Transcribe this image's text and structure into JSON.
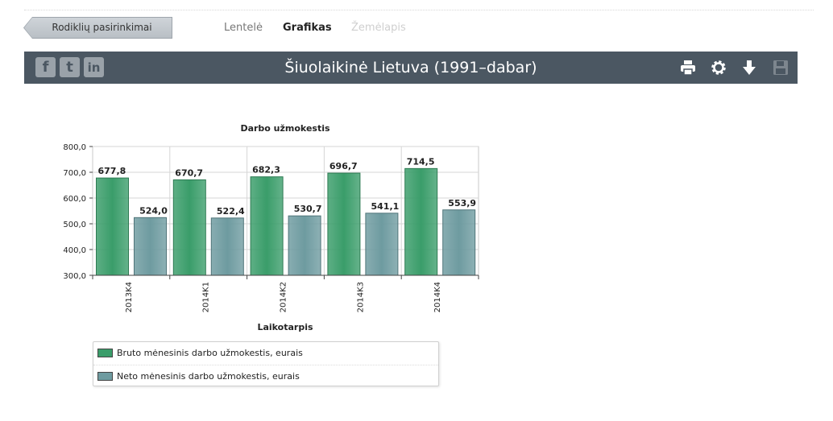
{
  "nav": {
    "back_label": "Rodiklių pasirinkimai",
    "tabs": [
      {
        "label": "Lentelė",
        "state": "inactive"
      },
      {
        "label": "Grafikas",
        "state": "active"
      },
      {
        "label": "Žemėlapis",
        "state": "disabled"
      }
    ]
  },
  "titlebar": {
    "title": "Šiuolaikinė Lietuva (1991–dabar)",
    "social": [
      {
        "icon": "facebook-icon",
        "glyph": "f"
      },
      {
        "icon": "twitter-icon",
        "glyph": "t"
      },
      {
        "icon": "linkedin-icon",
        "glyph": "in"
      }
    ],
    "tools": [
      "print-icon",
      "settings-gear-icon",
      "download-icon",
      "save-disk-icon"
    ]
  },
  "colors": {
    "titlebar_bg": "#4b5762",
    "series_bruto": "#3a9d6a",
    "series_neto": "#6e9ba0",
    "disabled_tab": "#cfcfcf"
  },
  "chart_data": {
    "type": "bar",
    "title": "Darbo užmokestis",
    "xlabel": "Laikotarpis",
    "ylabel": "",
    "categories": [
      "2013K4",
      "2014K1",
      "2014K2",
      "2014K3",
      "2014K4"
    ],
    "series": [
      {
        "name": "Bruto mėnesinis darbo užmokestis, eurais",
        "values": [
          677.8,
          670.7,
          682.3,
          696.7,
          714.5
        ],
        "labels": [
          "677,8",
          "670,7",
          "682,3",
          "696,7",
          "714,5"
        ]
      },
      {
        "name": "Neto mėnesinis darbo užmokestis, eurais",
        "values": [
          524.0,
          522.4,
          530.7,
          541.1,
          553.9
        ],
        "labels": [
          "524,0",
          "522,4",
          "530,7",
          "541,1",
          "553,9"
        ]
      }
    ],
    "ylim": [
      300,
      800
    ],
    "yticks": [
      300,
      400,
      500,
      600,
      700,
      800
    ],
    "ytick_labels": [
      "300,0",
      "400,0",
      "500,0",
      "600,0",
      "700,0",
      "800,0"
    ],
    "grid": true,
    "legend_position": "bottom-left"
  }
}
